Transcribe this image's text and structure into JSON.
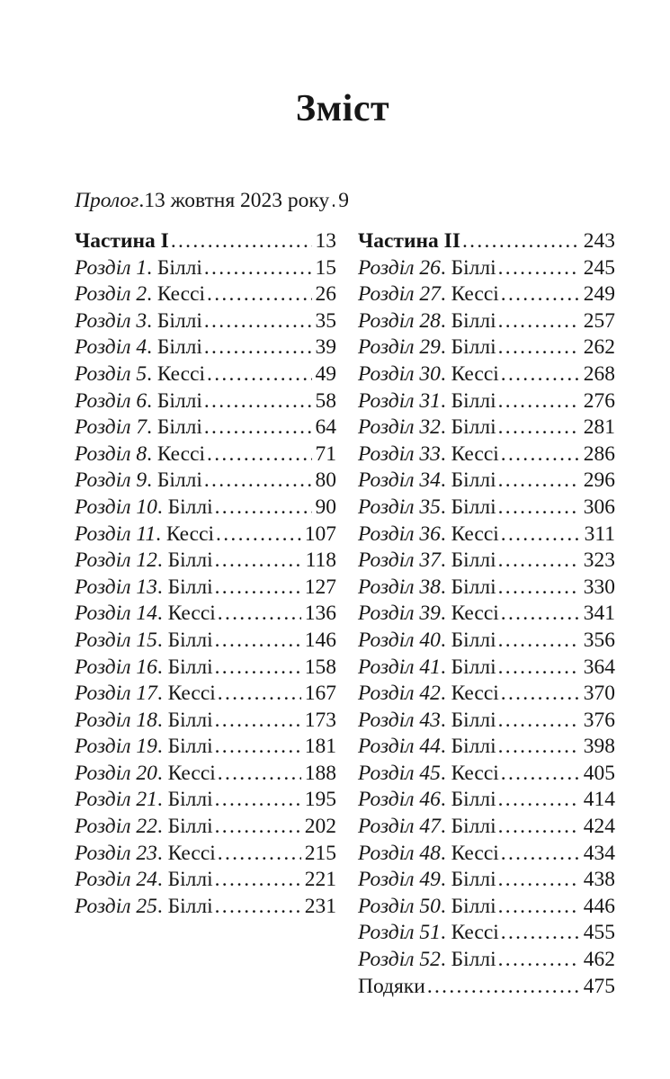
{
  "page_title": "Зміст",
  "prolog": {
    "italic": "Пролог",
    "rest": ".13 жовтня 2023 року",
    "page": "9"
  },
  "columns": {
    "left": [
      {
        "bold": "Частина I",
        "page": "13"
      },
      {
        "italic": "Розділ 1",
        "rest": ". Біллі",
        "page": "15"
      },
      {
        "italic": "Розділ 2",
        "rest": ". Кессі",
        "page": "26"
      },
      {
        "italic": "Розділ 3",
        "rest": ". Біллі",
        "page": "35"
      },
      {
        "italic": "Розділ 4",
        "rest": ". Біллі",
        "page": "39"
      },
      {
        "italic": "Розділ 5",
        "rest": ". Кессі",
        "page": "49"
      },
      {
        "italic": "Розділ 6",
        "rest": ". Біллі",
        "page": "58"
      },
      {
        "italic": "Розділ 7",
        "rest": ". Біллі",
        "page": "64"
      },
      {
        "italic": "Розділ 8",
        "rest": ". Кессі",
        "page": "71"
      },
      {
        "italic": "Розділ 9",
        "rest": ". Біллі",
        "page": "80"
      },
      {
        "italic": "Розділ 10",
        "rest": ". Біллі",
        "page": "90"
      },
      {
        "italic": "Розділ 11",
        "rest": ". Кессі",
        "page": "107"
      },
      {
        "italic": "Розділ 12",
        "rest": ". Біллі",
        "page": "118"
      },
      {
        "italic": "Розділ 13",
        "rest": ". Біллі",
        "page": "127"
      },
      {
        "italic": "Розділ 14",
        "rest": ". Кессі",
        "page": "136"
      },
      {
        "italic": "Розділ 15",
        "rest": ". Біллі",
        "page": "146"
      },
      {
        "italic": "Розділ 16",
        "rest": ". Біллі",
        "page": "158"
      },
      {
        "italic": "Розділ 17",
        "rest": ". Кессі",
        "page": "167"
      },
      {
        "italic": "Розділ 18",
        "rest": ". Біллі",
        "page": "173"
      },
      {
        "italic": "Розділ 19",
        "rest": ". Біллі",
        "page": "181"
      },
      {
        "italic": "Розділ 20",
        "rest": ". Кессі",
        "page": "188"
      },
      {
        "italic": "Розділ 21",
        "rest": ". Біллі",
        "page": "195"
      },
      {
        "italic": "Розділ 22",
        "rest": ". Біллі",
        "page": "202"
      },
      {
        "italic": "Розділ 23",
        "rest": ". Кессі",
        "page": "215"
      },
      {
        "italic": "Розділ 24",
        "rest": ". Біллі",
        "page": "221"
      },
      {
        "italic": "Розділ 25",
        "rest": ". Біллі",
        "page": "231"
      }
    ],
    "right": [
      {
        "bold": "Частина II",
        "page": "243"
      },
      {
        "italic": "Розділ 26",
        "rest": ". Біллі",
        "page": "245"
      },
      {
        "italic": "Розділ 27",
        "rest": ". Кессі",
        "page": "249"
      },
      {
        "italic": "Розділ 28",
        "rest": ". Біллі",
        "page": "257"
      },
      {
        "italic": "Розділ 29",
        "rest": ". Біллі",
        "page": "262"
      },
      {
        "italic": "Розділ 30",
        "rest": ". Кессі",
        "page": "268"
      },
      {
        "italic": "Розділ 31",
        "rest": ". Біллі",
        "page": "276"
      },
      {
        "italic": "Розділ 32",
        "rest": ". Біллі",
        "page": "281"
      },
      {
        "italic": "Розділ 33",
        "rest": ". Кессі",
        "page": "286"
      },
      {
        "italic": "Розділ 34",
        "rest": ". Біллі",
        "page": "296"
      },
      {
        "italic": "Розділ 35",
        "rest": ". Біллі",
        "page": "306"
      },
      {
        "italic": "Розділ 36",
        "rest": ". Кессі",
        "page": "311"
      },
      {
        "italic": "Розділ 37",
        "rest": ". Біллі",
        "page": "323"
      },
      {
        "italic": "Розділ 38",
        "rest": ". Біллі",
        "page": "330"
      },
      {
        "italic": "Розділ 39",
        "rest": ". Кессі",
        "page": "341"
      },
      {
        "italic": "Розділ 40",
        "rest": ". Біллі",
        "page": "356"
      },
      {
        "italic": "Розділ 41",
        "rest": ". Біллі",
        "page": "364"
      },
      {
        "italic": "Розділ 42",
        "rest": ". Кессі",
        "page": "370"
      },
      {
        "italic": "Розділ 43",
        "rest": ". Біллі",
        "page": "376"
      },
      {
        "italic": "Розділ 44",
        "rest": ". Біллі",
        "page": "398"
      },
      {
        "italic": "Розділ 45",
        "rest": ". Кессі",
        "page": "405"
      },
      {
        "italic": "Розділ 46",
        "rest": ". Біллі",
        "page": "414"
      },
      {
        "italic": "Розділ 47",
        "rest": ". Біллі",
        "page": "424"
      },
      {
        "italic": "Розділ 48",
        "rest": ". Кессі",
        "page": "434"
      },
      {
        "italic": "Розділ 49",
        "rest": ". Біллі",
        "page": "438"
      },
      {
        "italic": "Розділ 50",
        "rest": ". Біллі",
        "page": "446"
      },
      {
        "italic": "Розділ 51",
        "rest": ". Кессі",
        "page": "455"
      },
      {
        "italic": "Розділ 52",
        "rest": ". Біллі",
        "page": "462"
      },
      {
        "plain": "Подяки",
        "page": "475"
      }
    ]
  }
}
